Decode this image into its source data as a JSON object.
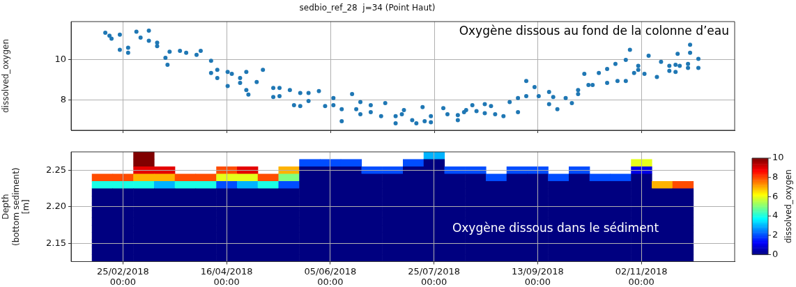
{
  "chart_data": [
    {
      "type": "scatter",
      "title": "sedbio_ref_28  j=34 (Point Haut)",
      "ylabel": "dissolved_oxygen",
      "annotations": [
        "Oxygène dissous au fond de la colonne d’eau"
      ],
      "categories": [
        null,
        null,
        null,
        null,
        null,
        null,
        null,
        null,
        null,
        null,
        null,
        null,
        null,
        null,
        null,
        null,
        null,
        null,
        null,
        null,
        null,
        null,
        null,
        null,
        null,
        null,
        null,
        null,
        null,
        null,
        null,
        null,
        null,
        null,
        null,
        null,
        null,
        null,
        null,
        null,
        null,
        null,
        null,
        null,
        null,
        null,
        null,
        null,
        null,
        null,
        null,
        null,
        null,
        null,
        null,
        null,
        null,
        null,
        null,
        null,
        null,
        null,
        null,
        null,
        null,
        null,
        null,
        null,
        null,
        null,
        null,
        null,
        null,
        null,
        null,
        null,
        null,
        null,
        null,
        null,
        null,
        null,
        null,
        null,
        null,
        null,
        null,
        null,
        null,
        null,
        null,
        null,
        null,
        null,
        null,
        null,
        null,
        null,
        null,
        null,
        null,
        null,
        null,
        null,
        null,
        null,
        null,
        null,
        null,
        null,
        null,
        null,
        null,
        null,
        null,
        null,
        null,
        null,
        null,
        null,
        null,
        null,
        null,
        null,
        null,
        null,
        null,
        null,
        null,
        null,
        null,
        null,
        null,
        null,
        null,
        null,
        null,
        null,
        null,
        null,
        null,
        null,
        null,
        null,
        null,
        null,
        null,
        null,
        null,
        null,
        null,
        null,
        null,
        null,
        null,
        null,
        null,
        null,
        null,
        null,
        null,
        null,
        null,
        null,
        null,
        null,
        null,
        null,
        null,
        null,
        null,
        null,
        null,
        null,
        null,
        null,
        null,
        null,
        null,
        null,
        null,
        null,
        null,
        null,
        null,
        null,
        null,
        null,
        null,
        null,
        null,
        null,
        null,
        null,
        null,
        null,
        null,
        null,
        null,
        null,
        null,
        null,
        null,
        null,
        null,
        null,
        null,
        null,
        null,
        null,
        null,
        null,
        null,
        null,
        null,
        null,
        null,
        null,
        null,
        null,
        null,
        null,
        null,
        null,
        null,
        null,
        null,
        null,
        null,
        null,
        null,
        null,
        null,
        null,
        null,
        null,
        null,
        null,
        null,
        null,
        null,
        null,
        null,
        null,
        null,
        null,
        null,
        null,
        null,
        null,
        null,
        null,
        null,
        null,
        null,
        null,
        null,
        null,
        null,
        null,
        null,
        null,
        null,
        null,
        null,
        null,
        null,
        null,
        null,
        null,
        null,
        null,
        null,
        null,
        null,
        null,
        null,
        null,
        null,
        null,
        null,
        null,
        null,
        null,
        null,
        null,
        null,
        null,
        null,
        null,
        null,
        null,
        null,
        null,
        null,
        null,
        null,
        null,
        null,
        null,
        null,
        null,
        null,
        null,
        null,
        null,
        null,
        null,
        null,
        null,
        null,
        null,
        null,
        null,
        null,
        null,
        null,
        null,
        null,
        null
      ],
      "series": [
        {
          "color": "#1f77b4",
          "values": [
            null,
            null,
            null,
            null,
            null,
            null,
            null,
            null,
            null,
            null,
            null,
            null,
            null,
            null,
            null,
            null,
            11.35,
            null,
            11.2,
            11.05,
            null,
            null,
            null,
            11.25,
            null,
            null,
            null,
            10.6,
            null,
            null,
            null,
            11.4,
            null,
            11.1,
            null,
            null,
            null,
            11.45,
            null,
            null,
            null,
            10.85,
            null,
            null,
            null,
            10.1,
            9.75,
            10.4,
            null,
            null,
            null,
            null,
            10.45,
            null,
            null,
            10.35,
            null,
            null,
            null,
            null,
            10.25,
            null,
            10.45,
            null,
            null,
            null,
            null,
            9.95,
            null,
            null,
            9.5,
            null,
            null,
            null,
            null,
            9.4,
            null,
            9.3,
            null,
            null,
            null,
            9.1,
            null,
            null,
            9.4,
            8.27,
            null,
            null,
            null,
            8.9,
            null,
            null,
            9.5,
            null,
            null,
            null,
            null,
            8.6,
            null,
            null,
            8.6,
            null,
            null,
            null,
            null,
            8.5,
            null,
            7.75,
            null,
            null,
            8.35,
            null,
            null,
            null,
            8.35,
            null,
            null,
            null,
            null,
            8.45,
            null,
            null,
            7.7,
            null,
            null,
            null,
            8.1,
            null,
            null,
            null,
            7.55,
            null,
            null,
            null,
            null,
            8.3,
            null,
            7.55,
            null,
            7.9,
            null,
            null,
            null,
            null,
            7.75,
            null,
            null,
            null,
            null,
            7.2,
            null,
            7.85,
            null,
            null,
            null,
            null,
            7.2,
            null,
            null,
            7.3,
            7.5,
            null,
            null,
            null,
            7.0,
            null,
            6.85,
            null,
            null,
            7.65,
            6.95,
            null,
            null,
            7.2,
            null,
            null,
            null,
            null,
            null,
            7.6,
            null,
            7.3,
            null,
            null,
            null,
            null,
            7.25,
            null,
            null,
            7.4,
            7.5,
            null,
            null,
            7.75,
            null,
            7.45,
            null,
            null,
            null,
            7.8,
            null,
            null,
            7.7,
            null,
            7.3,
            null,
            null,
            null,
            7.2,
            null,
            null,
            7.9,
            null,
            null,
            null,
            8.1,
            null,
            null,
            null,
            8.95,
            null,
            null,
            null,
            8.65,
            null,
            8.2,
            null,
            null,
            null,
            null,
            8.4,
            null,
            8.15,
            null,
            7.55,
            null,
            null,
            null,
            8.1,
            null,
            null,
            7.85,
            null,
            null,
            8.5,
            null,
            null,
            9.3,
            null,
            8.75,
            null,
            8.75,
            null,
            null,
            9.35,
            null,
            null,
            null,
            9.55,
            null,
            null,
            null,
            9.8,
            8.95,
            null,
            null,
            null,
            10.0,
            null,
            10.5,
            null,
            9.35,
            null,
            9.7,
            null,
            null,
            9.3,
            null,
            10.2,
            null,
            null,
            null,
            9.15,
            null,
            9.9,
            null,
            null,
            null,
            9.7,
            null,
            null,
            9.75,
            10.3,
            9.7,
            null,
            null,
            null,
            9.8,
            10.75,
            null,
            null,
            null,
            10.05,
            null,
            null,
            null,
            null,
            null,
            null,
            null,
            null,
            null,
            null,
            null,
            null,
            null,
            null,
            null,
            null,
            null
          ]
        },
        {
          "color": "#1f77b4",
          "values": [
            null,
            null,
            null,
            null,
            null,
            null,
            null,
            null,
            null,
            null,
            null,
            null,
            null,
            null,
            null,
            null,
            null,
            null,
            null,
            null,
            null,
            null,
            null,
            10.5,
            null,
            null,
            null,
            10.35,
            null,
            null,
            null,
            null,
            null,
            null,
            null,
            null,
            null,
            10.95,
            null,
            null,
            null,
            10.68,
            null,
            null,
            null,
            null,
            null,
            null,
            null,
            null,
            null,
            null,
            null,
            null,
            null,
            null,
            null,
            null,
            null,
            null,
            null,
            null,
            null,
            null,
            null,
            null,
            null,
            9.35,
            null,
            null,
            9.1,
            null,
            null,
            null,
            null,
            8.7,
            null,
            null,
            null,
            null,
            null,
            8.85,
            null,
            null,
            8.5,
            null,
            null,
            null,
            null,
            null,
            null,
            null,
            null,
            null,
            null,
            null,
            null,
            8.15,
            null,
            null,
            8.2,
            null,
            null,
            null,
            null,
            null,
            null,
            null,
            null,
            null,
            7.7,
            null,
            null,
            null,
            7.95,
            null,
            null,
            null,
            null,
            null,
            null,
            null,
            null,
            null,
            null,
            null,
            7.75,
            null,
            null,
            null,
            6.95,
            null,
            null,
            null,
            null,
            null,
            null,
            null,
            null,
            7.3,
            null,
            null,
            null,
            null,
            7.4,
            null,
            null,
            null,
            null,
            null,
            null,
            null,
            null,
            null,
            null,
            null,
            6.85,
            null,
            null,
            null,
            null,
            null,
            null,
            null,
            null,
            null,
            null,
            null,
            null,
            null,
            null,
            null,
            null,
            6.9,
            null,
            null,
            null,
            null,
            null,
            null,
            null,
            null,
            null,
            null,
            null,
            null,
            7.0,
            null,
            null,
            null,
            null,
            null,
            null,
            null,
            null,
            null,
            null,
            null,
            null,
            7.35,
            null,
            null,
            null,
            null,
            null,
            null,
            null,
            null,
            null,
            null,
            null,
            null,
            null,
            null,
            null,
            7.4,
            null,
            null,
            null,
            8.2,
            null,
            null,
            null,
            null,
            null,
            null,
            null,
            null,
            null,
            null,
            7.8,
            null,
            null,
            null,
            null,
            null,
            null,
            null,
            null,
            null,
            null,
            null,
            null,
            null,
            8.3,
            null,
            null,
            null,
            null,
            null,
            null,
            null,
            null,
            null,
            null,
            null,
            null,
            null,
            8.85,
            null,
            null,
            null,
            null,
            null,
            null,
            null,
            null,
            8.95,
            null,
            null,
            null,
            null,
            null,
            9.5,
            null,
            null,
            null,
            null,
            null,
            null,
            null,
            null,
            null,
            null,
            null,
            null,
            null,
            null,
            9.45,
            null,
            null,
            9.4,
            null,
            null,
            null,
            null,
            null,
            9.6,
            10.35,
            null,
            null,
            null,
            9.6,
            null,
            null,
            null,
            null,
            null,
            null,
            null,
            null,
            null,
            null,
            null,
            null,
            null,
            null,
            null,
            null,
            null
          ]
        }
      ],
      "marker": "circle",
      "ylim": [
        6.5,
        11.9
      ],
      "yticks": [
        8,
        10
      ],
      "grid": true,
      "tick_labels": "y"
    },
    {
      "type": "heatmap",
      "ylabel": "Depth\n(bottom sediment)\n[m]",
      "clabel": "dissolved_oxygen",
      "annotations": [
        "Oxygène dissous dans le sédiment"
      ],
      "categories": [
        null,
        null,
        "25/02/2018\n00:00",
        null,
        null,
        null,
        null,
        "16/04/2018\n00:00",
        null,
        null,
        null,
        null,
        "05/06/2018\n00:00",
        null,
        null,
        null,
        null,
        "25/07/2018\n00:00",
        null,
        null,
        null,
        null,
        "13/09/2018\n00:00",
        null,
        null,
        null,
        null,
        "02/11/2018\n00:00",
        null,
        null,
        null,
        null
      ],
      "y_categories": [
        null,
        null,
        "2.25",
        null,
        null,
        null,
        null,
        "2.20",
        null,
        null,
        null,
        null,
        "2.15",
        null,
        null
      ],
      "cells": [
        [
          null,
          null,
          null,
          10,
          null,
          null,
          null,
          null,
          null,
          null,
          null,
          null,
          null,
          null,
          null,
          null,
          null,
          3,
          null,
          null,
          null,
          null,
          null,
          null,
          null,
          null,
          null,
          null,
          null,
          null,
          null,
          null
        ],
        [
          null,
          null,
          null,
          10,
          null,
          null,
          null,
          null,
          null,
          null,
          null,
          2,
          2,
          2,
          null,
          null,
          2,
          0,
          null,
          null,
          null,
          null,
          null,
          null,
          null,
          null,
          null,
          6,
          null,
          null,
          null,
          null
        ],
        [
          null,
          null,
          null,
          9,
          9,
          null,
          null,
          8,
          9,
          null,
          7,
          0,
          0,
          0,
          2,
          2,
          0,
          0,
          2,
          2,
          null,
          2,
          2,
          null,
          2,
          null,
          null,
          1,
          null,
          null,
          null,
          null
        ],
        [
          null,
          8,
          8,
          7,
          7,
          8,
          8,
          6,
          6,
          8,
          5,
          0,
          0,
          0,
          0,
          0,
          0,
          0,
          0,
          0,
          2,
          0,
          0,
          2,
          0,
          2,
          2,
          0,
          null,
          null,
          null,
          null
        ],
        [
          null,
          4,
          4,
          4,
          3,
          4,
          4,
          2,
          3,
          4,
          2,
          0,
          0,
          0,
          0,
          0,
          0,
          0,
          0,
          0,
          0,
          0,
          0,
          0,
          0,
          0,
          0,
          0,
          7,
          8,
          null,
          null
        ],
        [
          null,
          0,
          0,
          0,
          0,
          0,
          0,
          0,
          0,
          0,
          0,
          0,
          0,
          0,
          0,
          0,
          0,
          0,
          0,
          0,
          0,
          0,
          0,
          0,
          0,
          0,
          0,
          0,
          0,
          0,
          null,
          null
        ],
        [
          null,
          0,
          0,
          0,
          0,
          0,
          0,
          0,
          0,
          0,
          0,
          0,
          0,
          0,
          0,
          0,
          0,
          0,
          0,
          0,
          0,
          0,
          0,
          0,
          0,
          0,
          0,
          0,
          0,
          0,
          null,
          null
        ],
        [
          null,
          0,
          0,
          0,
          0,
          0,
          0,
          0,
          0,
          0,
          0,
          0,
          0,
          0,
          0,
          0,
          0,
          0,
          0,
          0,
          0,
          0,
          0,
          0,
          0,
          0,
          0,
          0,
          0,
          0,
          null,
          null
        ],
        [
          null,
          0,
          0,
          0,
          0,
          0,
          0,
          0,
          0,
          0,
          0,
          0,
          0,
          0,
          0,
          0,
          0,
          0,
          0,
          0,
          0,
          0,
          0,
          0,
          0,
          0,
          0,
          0,
          0,
          0,
          null,
          null
        ],
        [
          null,
          0,
          0,
          0,
          0,
          0,
          0,
          0,
          0,
          0,
          0,
          0,
          0,
          0,
          0,
          0,
          0,
          0,
          0,
          0,
          0,
          0,
          0,
          0,
          0,
          0,
          0,
          0,
          0,
          0,
          null,
          null
        ],
        [
          null,
          0,
          0,
          0,
          0,
          0,
          0,
          0,
          0,
          0,
          0,
          0,
          0,
          0,
          0,
          0,
          0,
          0,
          0,
          0,
          0,
          0,
          0,
          0,
          0,
          0,
          0,
          0,
          0,
          0,
          null,
          null
        ],
        [
          null,
          0,
          0,
          0,
          0,
          0,
          0,
          0,
          0,
          0,
          0,
          0,
          0,
          0,
          0,
          0,
          0,
          0,
          0,
          0,
          0,
          0,
          0,
          0,
          0,
          0,
          0,
          0,
          0,
          0,
          null,
          null
        ],
        [
          null,
          0,
          0,
          0,
          0,
          0,
          0,
          0,
          0,
          0,
          0,
          0,
          0,
          0,
          0,
          0,
          0,
          0,
          0,
          0,
          0,
          0,
          0,
          0,
          0,
          0,
          0,
          0,
          0,
          0,
          null,
          null
        ],
        [
          null,
          0,
          0,
          0,
          0,
          0,
          0,
          0,
          0,
          0,
          0,
          0,
          0,
          0,
          0,
          0,
          0,
          0,
          0,
          0,
          0,
          0,
          0,
          0,
          0,
          0,
          0,
          0,
          0,
          0,
          null,
          null
        ],
        [
          null,
          0,
          0,
          0,
          0,
          0,
          0,
          0,
          0,
          0,
          0,
          0,
          0,
          0,
          0,
          0,
          0,
          0,
          0,
          0,
          0,
          0,
          0,
          0,
          0,
          0,
          0,
          0,
          0,
          0,
          null,
          null
        ]
      ],
      "clim": [
        0,
        10
      ],
      "cticks": [
        0,
        2,
        4,
        6,
        8,
        10
      ],
      "grid": true
    }
  ]
}
